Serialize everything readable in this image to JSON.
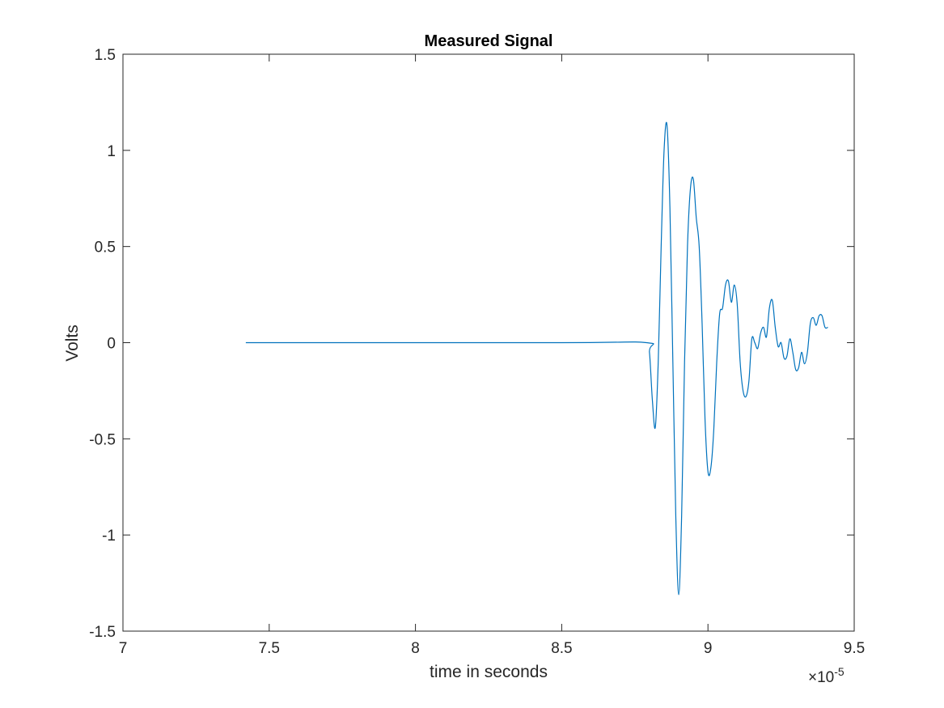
{
  "chart_data": {
    "type": "line",
    "title": "Measured Signal",
    "xlabel": "time in seconds",
    "ylabel": "Volts",
    "xlim": [
      7.0,
      9.5
    ],
    "ylim": [
      -1.5,
      1.5
    ],
    "x_ticks": [
      "7",
      "7.5",
      "8",
      "8.5",
      "9",
      "9.5"
    ],
    "y_ticks": [
      "1.5",
      "1",
      "0.5",
      "0",
      "-0.5",
      "-1",
      "-1.5"
    ],
    "x_exponent": {
      "base": "×10",
      "power": "-5"
    },
    "grid": false,
    "series": [
      {
        "color": "#0072BD",
        "x": [
          7.42,
          8.5,
          8.79,
          8.8,
          8.81,
          8.82,
          8.83,
          8.84,
          8.85,
          8.86,
          8.87,
          8.88,
          8.89,
          8.9,
          8.91,
          8.92,
          8.93,
          8.94,
          8.95,
          8.96,
          8.97,
          8.98,
          8.99,
          9.0,
          9.01,
          9.02,
          9.03,
          9.04,
          9.05,
          9.06,
          9.07,
          9.08,
          9.09,
          9.1,
          9.11,
          9.12,
          9.13,
          9.14,
          9.15,
          9.16,
          9.17,
          9.18,
          9.19,
          9.2,
          9.21,
          9.22,
          9.23,
          9.24,
          9.25,
          9.26,
          9.27,
          9.28,
          9.29,
          9.3,
          9.31,
          9.32,
          9.33,
          9.34,
          9.35,
          9.36,
          9.37,
          9.38,
          9.39,
          9.4,
          9.41
        ],
        "y": [
          0.0,
          0.0,
          0.0,
          -0.05,
          -0.3,
          -0.44,
          -0.1,
          0.5,
          1.0,
          1.13,
          0.7,
          -0.1,
          -0.9,
          -1.31,
          -0.9,
          -0.1,
          0.5,
          0.8,
          0.85,
          0.65,
          0.5,
          0.1,
          -0.4,
          -0.67,
          -0.65,
          -0.45,
          -0.1,
          0.15,
          0.18,
          0.3,
          0.32,
          0.21,
          0.3,
          0.2,
          -0.1,
          -0.25,
          -0.28,
          -0.2,
          0.02,
          0.0,
          -0.03,
          0.05,
          0.08,
          0.03,
          0.18,
          0.22,
          0.08,
          -0.02,
          0.0,
          -0.08,
          -0.07,
          0.02,
          -0.05,
          -0.14,
          -0.13,
          -0.05,
          -0.11,
          -0.05,
          0.1,
          0.13,
          0.09,
          0.14,
          0.14,
          0.08,
          0.08
        ]
      }
    ]
  }
}
